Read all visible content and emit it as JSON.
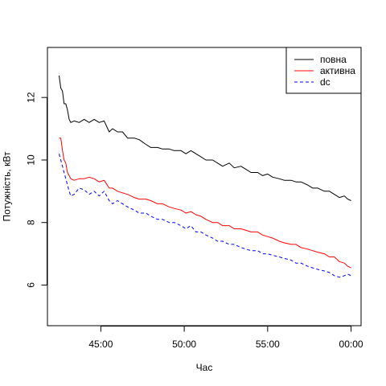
{
  "chart_data": {
    "type": "line",
    "xlabel": "Час",
    "ylabel": "Потужність, кВт",
    "x_ticks": [
      "45:00",
      "50:00",
      "55:00",
      "00:00"
    ],
    "x_tick_values": [
      -15,
      -10,
      -5,
      0
    ],
    "y_ticks": [
      "6",
      "8",
      "10",
      "12"
    ],
    "y_tick_values": [
      6,
      8,
      10,
      12
    ],
    "xlim": [
      -18.2,
      0.6
    ],
    "ylim": [
      4.7,
      13.6
    ],
    "grid": false,
    "legend_position": "top-right",
    "series": [
      {
        "name": "повна",
        "color": "#000000",
        "dash": "solid",
        "x": [
          -17.5,
          -17.4,
          -17.3,
          -17.2,
          -17.1,
          -17.0,
          -16.9,
          -16.8,
          -16.6,
          -16.3,
          -16.0,
          -15.7,
          -15.4,
          -15.1,
          -14.8,
          -14.5,
          -14.3,
          -14.0,
          -13.7,
          -13.4,
          -13.0,
          -12.7,
          -12.3,
          -12.0,
          -11.6,
          -11.3,
          -10.9,
          -10.6,
          -10.2,
          -9.9,
          -9.6,
          -9.3,
          -9.0,
          -8.7,
          -8.3,
          -8.0,
          -7.7,
          -7.3,
          -7.0,
          -6.6,
          -6.3,
          -6.0,
          -5.6,
          -5.3,
          -5.0,
          -4.7,
          -4.3,
          -4.0,
          -3.6,
          -3.3,
          -3.0,
          -2.6,
          -2.3,
          -2.0,
          -1.6,
          -1.3,
          -1.0,
          -0.7,
          -0.4,
          -0.2,
          0.0
        ],
        "y": [
          12.7,
          12.3,
          12.2,
          11.8,
          11.8,
          11.6,
          11.3,
          11.2,
          11.25,
          11.2,
          11.3,
          11.2,
          11.3,
          11.2,
          11.25,
          10.9,
          11.0,
          10.9,
          10.9,
          10.7,
          10.7,
          10.65,
          10.5,
          10.4,
          10.4,
          10.35,
          10.35,
          10.3,
          10.3,
          10.2,
          10.3,
          10.2,
          10.1,
          10.0,
          10.0,
          9.9,
          9.8,
          9.9,
          9.75,
          9.8,
          9.7,
          9.6,
          9.6,
          9.5,
          9.55,
          9.45,
          9.4,
          9.35,
          9.35,
          9.3,
          9.3,
          9.2,
          9.1,
          9.1,
          9.0,
          9.0,
          8.9,
          8.8,
          8.85,
          8.75,
          8.7
        ]
      },
      {
        "name": "активна",
        "color": "#ff0000",
        "dash": "solid",
        "x": [
          -17.5,
          -17.4,
          -17.3,
          -17.2,
          -17.1,
          -17.0,
          -16.9,
          -16.8,
          -16.6,
          -16.3,
          -16.0,
          -15.7,
          -15.4,
          -15.1,
          -14.8,
          -14.5,
          -14.3,
          -14.0,
          -13.7,
          -13.4,
          -13.0,
          -12.7,
          -12.3,
          -12.0,
          -11.6,
          -11.3,
          -10.9,
          -10.6,
          -10.2,
          -9.9,
          -9.6,
          -9.3,
          -9.0,
          -8.7,
          -8.3,
          -8.0,
          -7.7,
          -7.3,
          -7.0,
          -6.6,
          -6.3,
          -6.0,
          -5.6,
          -5.3,
          -5.0,
          -4.7,
          -4.3,
          -4.0,
          -3.6,
          -3.3,
          -3.0,
          -2.6,
          -2.3,
          -2.0,
          -1.6,
          -1.3,
          -1.0,
          -0.7,
          -0.4,
          -0.2,
          0.0
        ],
        "y": [
          10.7,
          10.7,
          10.3,
          10.0,
          9.9,
          9.6,
          9.5,
          9.4,
          9.35,
          9.4,
          9.4,
          9.45,
          9.4,
          9.3,
          9.35,
          9.1,
          9.1,
          9.0,
          8.95,
          8.9,
          8.8,
          8.75,
          8.75,
          8.7,
          8.6,
          8.6,
          8.5,
          8.45,
          8.4,
          8.3,
          8.35,
          8.25,
          8.2,
          8.1,
          8.0,
          8.0,
          7.9,
          7.9,
          7.8,
          7.8,
          7.75,
          7.7,
          7.7,
          7.6,
          7.55,
          7.5,
          7.4,
          7.35,
          7.3,
          7.3,
          7.2,
          7.15,
          7.1,
          7.05,
          7.0,
          6.9,
          6.9,
          6.75,
          6.7,
          6.6,
          6.55
        ]
      },
      {
        "name": "dc",
        "color": "#0000ff",
        "dash": "dashed",
        "x": [
          -17.5,
          -17.4,
          -17.3,
          -17.2,
          -17.1,
          -17.0,
          -16.9,
          -16.8,
          -16.6,
          -16.3,
          -16.0,
          -15.7,
          -15.4,
          -15.1,
          -14.8,
          -14.5,
          -14.3,
          -14.0,
          -13.7,
          -13.4,
          -13.0,
          -12.7,
          -12.3,
          -12.0,
          -11.6,
          -11.3,
          -10.9,
          -10.6,
          -10.2,
          -9.9,
          -9.6,
          -9.3,
          -9.0,
          -8.7,
          -8.3,
          -8.0,
          -7.7,
          -7.3,
          -7.0,
          -6.6,
          -6.3,
          -6.0,
          -5.6,
          -5.3,
          -5.0,
          -4.7,
          -4.3,
          -4.0,
          -3.6,
          -3.3,
          -3.0,
          -2.6,
          -2.3,
          -2.0,
          -1.6,
          -1.3,
          -1.0,
          -0.7,
          -0.4,
          -0.2,
          0.0
        ],
        "y": [
          10.2,
          10.0,
          9.8,
          9.6,
          9.4,
          9.2,
          9.0,
          8.85,
          8.9,
          9.1,
          9.05,
          8.9,
          9.0,
          8.85,
          9.0,
          8.7,
          8.6,
          8.7,
          8.6,
          8.5,
          8.4,
          8.3,
          8.3,
          8.2,
          8.1,
          8.1,
          8.0,
          8.0,
          7.9,
          7.8,
          7.9,
          7.7,
          7.7,
          7.6,
          7.5,
          7.4,
          7.4,
          7.3,
          7.3,
          7.2,
          7.15,
          7.1,
          7.1,
          7.0,
          7.0,
          6.95,
          6.9,
          6.85,
          6.8,
          6.7,
          6.7,
          6.6,
          6.55,
          6.5,
          6.45,
          6.4,
          6.3,
          6.25,
          6.3,
          6.35,
          6.3
        ]
      }
    ]
  }
}
